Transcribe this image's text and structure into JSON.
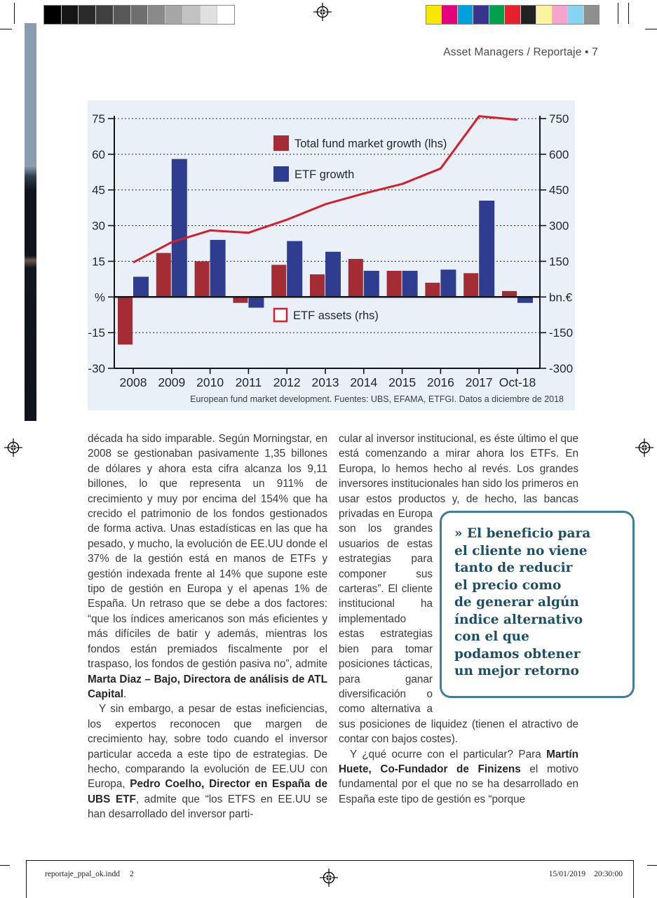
{
  "printer_marks": {
    "grayscale_swatches": [
      "#000000",
      "#161616",
      "#2b2b2b",
      "#404040",
      "#575757",
      "#6f6f6f",
      "#8a8a8a",
      "#a6a6a6",
      "#c2c2c2",
      "#e0e0e0",
      "#ffffff"
    ],
    "color_swatches": [
      "#f8e800",
      "#e6007d",
      "#00a0dc",
      "#38338c",
      "#00a04e",
      "#e8202d",
      "#222222",
      "#fbf39e",
      "#f6a3cd",
      "#85d5f2",
      "#8f8f8f"
    ]
  },
  "header": {
    "text": "Asset Managers / Reportaje • 7"
  },
  "chart_data": {
    "type": "bar+line",
    "categories": [
      "2008",
      "2009",
      "2010",
      "2011",
      "2012",
      "2013",
      "2014",
      "2015",
      "2016",
      "2017",
      "Oct-18"
    ],
    "series": [
      {
        "name": "Total fund market growth (lhs)",
        "type": "bar",
        "axis": "left",
        "color": "#a32c35",
        "values": [
          -20,
          18.5,
          15,
          -2.5,
          13.5,
          9.5,
          16,
          11,
          6,
          10,
          2.5
        ]
      },
      {
        "name": "ETF growth",
        "type": "bar",
        "axis": "left",
        "color": "#2e3d90",
        "values": [
          8.5,
          58,
          24,
          -4.5,
          23.5,
          19,
          11,
          11,
          11.5,
          40.5,
          -2.5
        ]
      },
      {
        "name": "ETF assets (rhs)",
        "type": "line",
        "axis": "right",
        "color": "#d41f2c",
        "values": [
          145,
          230,
          280,
          270,
          325,
          390,
          435,
          475,
          540,
          760,
          745
        ]
      }
    ],
    "left_axis": {
      "min": -30,
      "max": 75,
      "ticks": [
        {
          "value": 75,
          "label": "75"
        },
        {
          "value": 60,
          "label": "60"
        },
        {
          "value": 45,
          "label": "45"
        },
        {
          "value": 30,
          "label": "30"
        },
        {
          "value": 15,
          "label": "15"
        },
        {
          "value": 0,
          "label": "%"
        },
        {
          "value": -15,
          "label": "-15"
        },
        {
          "value": -30,
          "label": "-30"
        }
      ]
    },
    "right_axis": {
      "min": -300,
      "max": 750,
      "ticks": [
        {
          "value": 750,
          "label": "750"
        },
        {
          "value": 600,
          "label": "600"
        },
        {
          "value": 450,
          "label": "450"
        },
        {
          "value": 300,
          "label": "300"
        },
        {
          "value": 150,
          "label": "150"
        },
        {
          "value": 0,
          "label": "bn.€"
        },
        {
          "value": -150,
          "label": "-150"
        },
        {
          "value": -300,
          "label": "-300"
        }
      ]
    },
    "grid": true,
    "legend_position": "inside-top-middle",
    "background": "#e9f0f8",
    "caption": "European fund market development. Fuentes: UBS, EFAMA, ETFGI. Datos a diciembre de 2018"
  },
  "article": {
    "col1": [
      {
        "indent": false,
        "segments": [
          {
            "text": "década ha sido imparable. Según Morningstar, en 2008 se gestionaban pasivamente 1,35 billones de dólares y ahora esta cifra alcanza los 9,11 billones, lo que representa un 911% de crecimiento y muy por encima del 154% que ha crecido el patrimonio de los fondos gestionados de forma activa. Unas estadísticas en las que ha pesado, y mucho, la evolución de EE.UU donde el 37% de la gestión está en manos de ETFs y gestión indexada frente al 14% que supone este tipo de gestión en Europa y el apenas 1% de España. Un retraso que se debe a dos factores: “que los índices americanos son más eficientes y más difíciles de batir y además, mientras los fondos están premiados fiscalmente por el traspaso, los fondos de gestión pasiva no”, admite "
          },
          {
            "text": "Marta Diaz – Bajo, Directora de análisis de ATL Capital",
            "bold": true
          },
          {
            "text": "."
          }
        ]
      },
      {
        "indent": true,
        "segments": [
          {
            "text": "Y sin embargo, a pesar de estas ineficiencias, los expertos reconocen que margen de crecimiento hay, sobre todo cuando el inversor particular acceda a este tipo de estrategias. De hecho, comparando la evolución de EE.UU con Europa, "
          },
          {
            "text": "Pedro Coelho, Director en España de UBS ETF",
            "bold": true
          },
          {
            "text": ", admite que “los ETFS en EE.UU se han desarrollado del inversor parti-"
          }
        ]
      }
    ],
    "col2": [
      {
        "indent": false,
        "segments": [
          {
            "text": "cular al inversor institucional, es éste último el que está comenzando a mirar ahora los ETFs. En Europa, lo hemos hecho al revés. Los grandes inversores institucionales han sido los primeros en usar estos productos y, de hecho, las "
          },
          {
            "insert": "quote"
          },
          {
            "text": "bancas privadas en Europa son los grandes usuarios de estas estrategias para componer sus carteras”. El cliente institucional ha implementado estas estrategias bien para tomar posiciones tácticas, para ganar diversificación o como alternativa a sus posiciones de liquidez (tienen el atractivo de contar con bajos costes)."
          }
        ]
      },
      {
        "indent": true,
        "segments": [
          {
            "text": "Y ¿qué ocurre con el particular? Para "
          },
          {
            "text": "Martín Huete, Co-Fundador de Finizens",
            "bold": true
          },
          {
            "text": " el motivo fundamental por el que no se ha desarrollado en España este tipo de gestión es “porque"
          }
        ]
      }
    ],
    "quote": {
      "lines": [
        "» El beneficio para",
        "el cliente no viene",
        "tanto de reducir",
        "el precio como",
        "de generar algún",
        "índice alternativo",
        "con el que",
        "podamos obtener",
        "un mejor retorno"
      ],
      "text_color": "#1d4f66",
      "border_color": "#417e98"
    }
  },
  "footer": {
    "filename": "reportaje_ppal_ok.indd",
    "page": "2",
    "date": "15/01/2019",
    "time": "20:30:00"
  }
}
